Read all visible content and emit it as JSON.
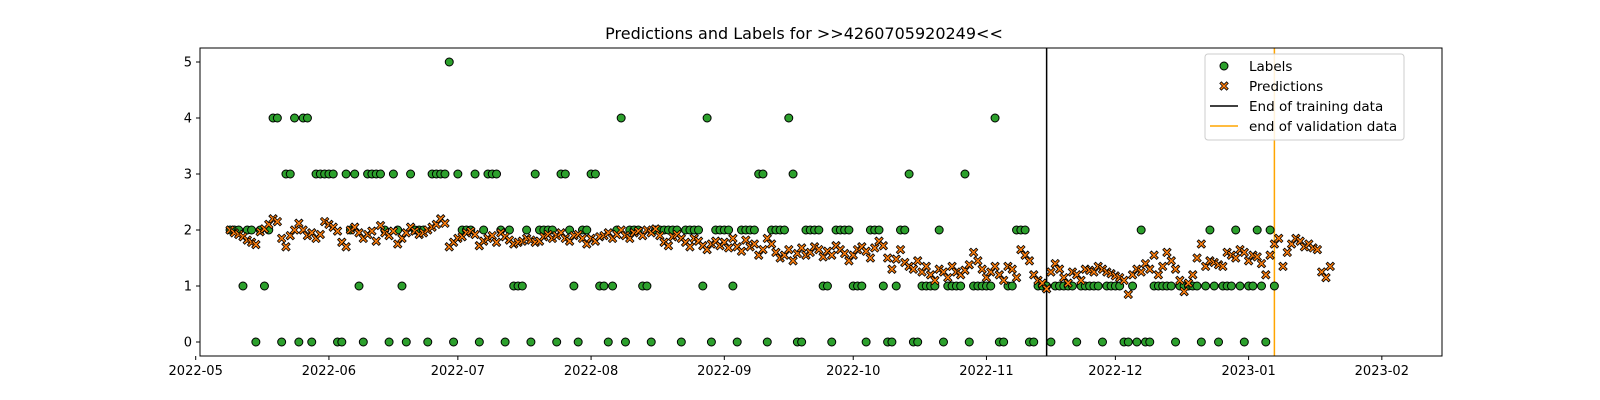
{
  "chart_data": {
    "type": "scatter",
    "title": "Predictions and Labels for >>4260705920249<<",
    "xlabel": "",
    "ylabel": "",
    "x_start": "2022-05-09",
    "xlim": [
      "2022-05-02",
      "2023-02-15"
    ],
    "ylim": [
      -0.25,
      5.25
    ],
    "x_ticks": [
      "2022-05",
      "2022-06",
      "2022-07",
      "2022-08",
      "2022-09",
      "2022-10",
      "2022-11",
      "2022-12",
      "2023-01",
      "2023-02"
    ],
    "x_tick_dates": [
      "2022-05-01",
      "2022-06-01",
      "2022-07-01",
      "2022-08-01",
      "2022-09-01",
      "2022-10-01",
      "2022-11-01",
      "2022-12-01",
      "2023-01-01",
      "2023-02-01"
    ],
    "y_ticks": [
      "0",
      "1",
      "2",
      "3",
      "4",
      "5"
    ],
    "y_tick_values": [
      0,
      1,
      2,
      3,
      4,
      5
    ],
    "grid": false,
    "legend_position": "top-right",
    "vlines": [
      {
        "name": "End of training data",
        "date": "2022-11-15",
        "color": "#000000"
      },
      {
        "name": "end of validation data",
        "date": "2023-01-07",
        "color": "#ffa500"
      }
    ],
    "series": [
      {
        "name": "Labels",
        "marker": "circle",
        "color": "#2ca02c",
        "values": [
          2,
          2,
          2,
          1,
          2,
          2,
          0,
          2,
          1,
          2,
          4,
          4,
          0,
          3,
          3,
          4,
          0,
          4,
          4,
          0,
          3,
          3,
          3,
          3,
          3,
          0,
          0,
          3,
          2,
          3,
          1,
          0,
          3,
          3,
          3,
          3,
          2,
          0,
          3,
          2,
          1,
          0,
          3,
          2,
          2,
          2,
          0,
          3,
          3,
          3,
          3,
          5,
          0,
          3,
          2,
          2,
          2,
          3,
          0,
          2,
          3,
          3,
          3,
          2,
          0,
          2,
          1,
          1,
          1,
          2,
          0,
          3,
          2,
          2,
          2,
          2,
          0,
          3,
          3,
          2,
          1,
          0,
          2,
          2,
          3,
          3,
          1,
          1,
          0,
          1,
          2,
          4,
          0,
          2,
          2,
          2,
          1,
          1,
          0,
          2,
          2,
          2,
          2,
          2,
          2,
          0,
          2,
          2,
          2,
          2,
          1,
          4,
          0,
          2,
          2,
          2,
          2,
          1,
          0,
          2,
          2,
          2,
          2,
          3,
          3,
          0,
          2,
          2,
          2,
          2,
          4,
          3,
          0,
          0,
          2,
          2,
          2,
          2,
          1,
          1,
          0,
          2,
          2,
          2,
          2,
          1,
          1,
          1,
          0,
          2,
          2,
          2,
          1,
          0,
          0,
          1,
          2,
          2,
          3,
          0,
          0,
          1,
          1,
          1,
          1,
          2,
          0,
          1,
          1,
          1,
          1,
          3,
          0,
          1,
          1,
          1,
          1,
          1,
          4,
          0,
          0,
          1,
          1,
          2,
          2,
          2,
          0,
          0,
          1,
          1,
          1,
          0,
          1,
          1,
          1,
          1,
          1,
          0,
          1,
          1,
          1,
          1,
          1,
          0,
          1,
          1,
          1,
          1,
          0,
          0,
          1,
          0,
          2,
          0,
          0,
          1,
          1,
          1,
          1,
          1,
          0,
          1,
          1,
          1,
          1,
          1,
          0,
          1,
          2,
          1,
          0,
          1,
          1,
          1,
          2,
          1,
          0,
          1,
          1,
          2,
          1,
          0,
          2,
          1
        ]
      },
      {
        "name": "Predictions",
        "marker": "x",
        "color": "#ff7f0e",
        "values": [
          2.0,
          1.95,
          1.92,
          1.88,
          1.82,
          1.78,
          1.74,
          1.97,
          2.02,
          2.1,
          2.2,
          2.15,
          1.85,
          1.7,
          1.9,
          2.0,
          2.12,
          2.0,
          1.9,
          1.95,
          1.85,
          1.92,
          2.15,
          2.1,
          2.05,
          1.98,
          1.78,
          1.7,
          2.0,
          2.05,
          1.95,
          1.85,
          1.92,
          1.98,
          1.8,
          2.08,
          1.95,
          1.9,
          1.98,
          1.75,
          1.85,
          1.95,
          2.05,
          1.98,
          1.92,
          1.95,
          2.0,
          2.05,
          2.1,
          2.2,
          2.12,
          1.7,
          1.78,
          1.85,
          1.88,
          1.95,
          1.98,
          1.92,
          1.72,
          1.8,
          1.85,
          1.9,
          1.78,
          1.95,
          1.88,
          1.82,
          1.75,
          1.78,
          1.8,
          1.85,
          1.82,
          1.78,
          1.8,
          1.88,
          1.92,
          1.85,
          1.9,
          1.95,
          1.85,
          1.8,
          1.9,
          1.92,
          1.85,
          1.75,
          1.85,
          1.8,
          1.88,
          1.9,
          1.95,
          1.85,
          1.92,
          2.0,
          1.9,
          1.85,
          1.95,
          1.98,
          1.9,
          2.0,
          1.95,
          2.02,
          1.9,
          1.78,
          1.72,
          1.88,
          1.92,
          1.85,
          1.78,
          1.7,
          1.85,
          1.8,
          1.72,
          1.65,
          1.75,
          1.8,
          1.72,
          1.78,
          1.68,
          1.85,
          1.7,
          1.62,
          1.82,
          1.7,
          1.75,
          1.55,
          1.65,
          1.85,
          1.75,
          1.6,
          1.5,
          1.55,
          1.65,
          1.45,
          1.58,
          1.68,
          1.55,
          1.6,
          1.7,
          1.65,
          1.52,
          1.62,
          1.55,
          1.72,
          1.65,
          1.58,
          1.45,
          1.55,
          1.65,
          1.7,
          1.62,
          1.5,
          1.68,
          1.8,
          1.72,
          1.5,
          1.3,
          1.48,
          1.65,
          1.42,
          1.35,
          1.3,
          1.45,
          1.25,
          1.35,
          1.2,
          1.1,
          1.3,
          1.25,
          1.15,
          1.35,
          1.25,
          1.2,
          1.28,
          1.38,
          1.6,
          1.45,
          1.3,
          1.15,
          1.25,
          1.35,
          1.2,
          1.1,
          1.35,
          1.3,
          1.15,
          1.65,
          1.55,
          1.45,
          1.2,
          1.1,
          1.05,
          0.95,
          1.25,
          1.4,
          1.3,
          1.15,
          1.05,
          1.25,
          1.2,
          1.1,
          1.3,
          1.28,
          1.25,
          1.35,
          1.3,
          1.25,
          1.22,
          1.18,
          1.15,
          1.1,
          0.85,
          1.2,
          1.3,
          1.25,
          1.4,
          1.3,
          1.55,
          1.2,
          1.35,
          1.6,
          1.45,
          1.3,
          1.1,
          0.9,
          1.05,
          1.2,
          1.5,
          1.75,
          1.35,
          1.45,
          1.42,
          1.38,
          1.35,
          1.6,
          1.55,
          1.5,
          1.65,
          1.6,
          1.45,
          1.55,
          1.52,
          1.4,
          1.2,
          1.55,
          1.75,
          1.85,
          1.35,
          1.6,
          1.75,
          1.85,
          1.8,
          1.7,
          1.75,
          1.68,
          1.65,
          1.25,
          1.15,
          1.35
        ]
      }
    ]
  }
}
